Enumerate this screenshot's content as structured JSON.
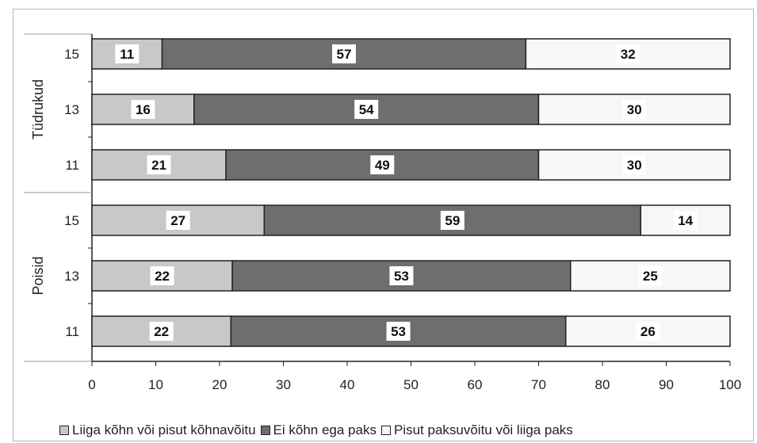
{
  "chart_data": {
    "type": "bar",
    "orientation": "horizontal",
    "stacked": true,
    "groups": [
      {
        "name": "Tüdrukud",
        "categories": [
          "15",
          "13",
          "11"
        ]
      },
      {
        "name": "Poisid",
        "categories": [
          "15",
          "13",
          "11"
        ]
      }
    ],
    "series": [
      {
        "name": "Liiga kõhn või pisut kõhnavõitu",
        "color": "#c8c8c8",
        "values": [
          11,
          16,
          21,
          27,
          22,
          22
        ]
      },
      {
        "name": "Ei kõhn ega paks",
        "color": "#6e6e6e",
        "values": [
          57,
          54,
          49,
          59,
          53,
          53
        ]
      },
      {
        "name": "Pisut paksuvõitu või liiga paks",
        "color": "#f7f7f7",
        "values": [
          32,
          30,
          30,
          14,
          25,
          26
        ]
      }
    ],
    "xlim": [
      0,
      100
    ],
    "xticks": [
      "0",
      "10",
      "20",
      "30",
      "40",
      "50",
      "60",
      "70",
      "80",
      "90",
      "100"
    ],
    "grid": false,
    "legend_position": "bottom"
  }
}
